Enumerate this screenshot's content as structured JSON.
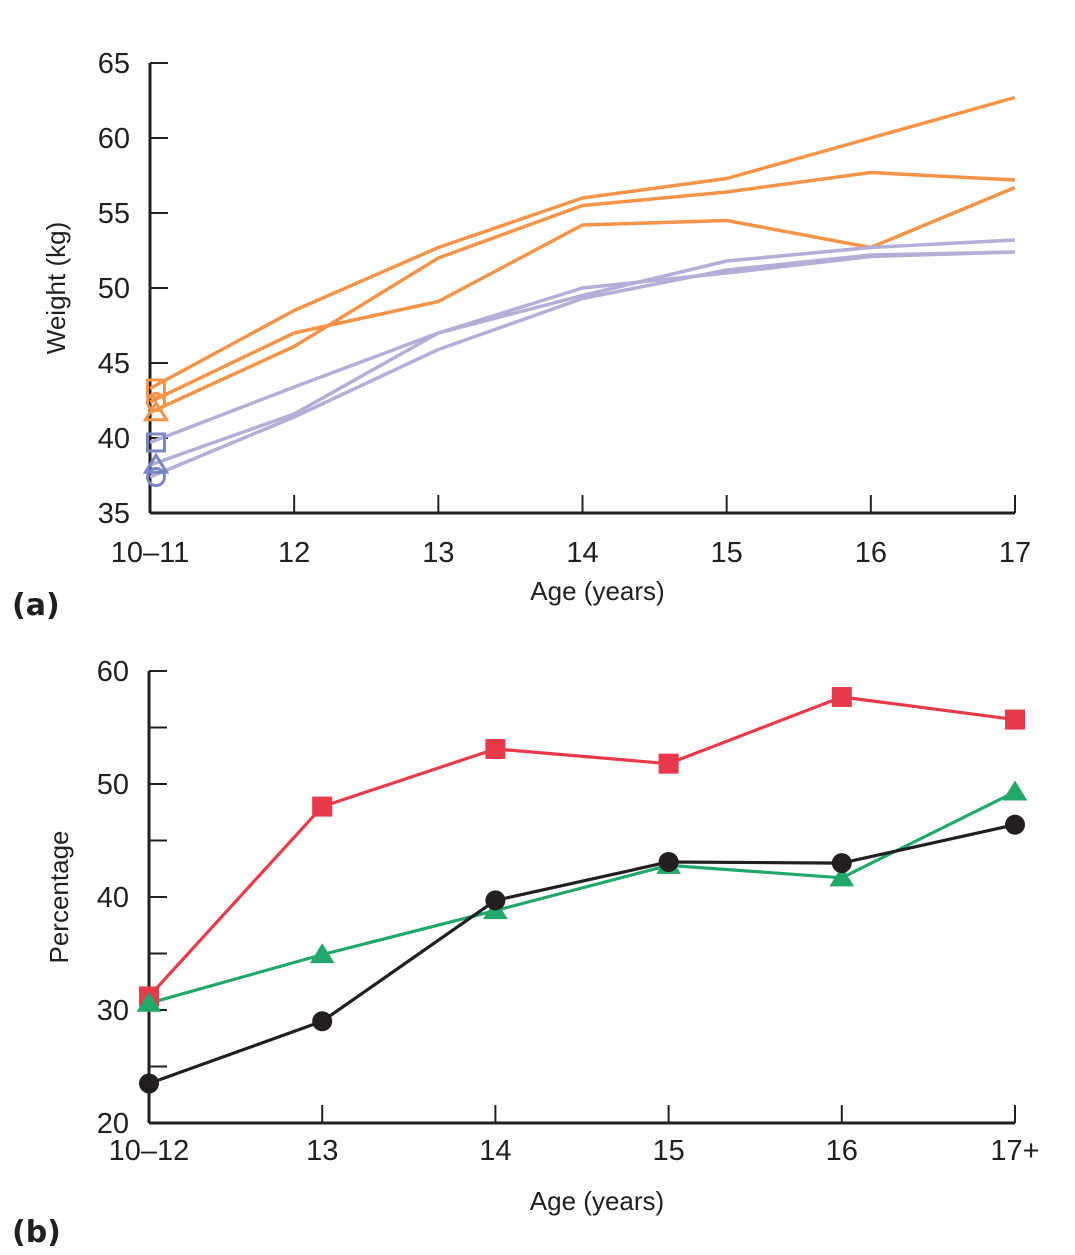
{
  "chart_data": [
    {
      "panel": "(a)",
      "type": "line",
      "title": "",
      "xlabel": "Age (years)",
      "ylabel": "Weight (kg)",
      "categories": [
        "10–11",
        "12",
        "13",
        "14",
        "15",
        "16",
        "17"
      ],
      "ylim": [
        35,
        65
      ],
      "yticks": [
        35,
        40,
        45,
        50,
        55,
        60,
        65
      ],
      "minor_y_ticks": false,
      "grid": false,
      "legend": "none",
      "series": [
        {
          "name": "orange-square",
          "color": "#f39449",
          "marker_color": "#f39449",
          "marker": "square-open",
          "values": [
            43.3,
            48.5,
            52.7,
            56.0,
            57.3,
            60.0,
            62.7
          ]
        },
        {
          "name": "orange-circle",
          "color": "#f39449",
          "marker_color": "#f39449",
          "marker": "circle-open",
          "values": [
            42.4,
            47.0,
            49.1,
            54.2,
            54.5,
            52.7,
            56.7
          ]
        },
        {
          "name": "orange-triangle",
          "color": "#f39449",
          "marker_color": "#f39449",
          "marker": "triangle-open",
          "values": [
            41.7,
            46.1,
            52.0,
            55.5,
            56.4,
            57.7,
            57.2
          ]
        },
        {
          "name": "purple-square",
          "color": "#b3afd6",
          "marker_color": "#7b86c6",
          "marker": "square-open",
          "values": [
            39.7,
            43.4,
            47.0,
            50.0,
            51.0,
            52.1,
            52.4
          ]
        },
        {
          "name": "purple-triangle",
          "color": "#b3afd6",
          "marker_color": "#7b86c6",
          "marker": "triangle-open",
          "values": [
            38.2,
            41.6,
            47.0,
            49.5,
            51.8,
            52.7,
            53.2
          ]
        },
        {
          "name": "purple-circle",
          "color": "#b3afd6",
          "marker_color": "#7b86c6",
          "marker": "circle-open",
          "values": [
            37.4,
            41.4,
            45.9,
            49.3,
            51.2,
            52.2,
            52.4
          ]
        }
      ]
    },
    {
      "panel": "(b)",
      "type": "line",
      "title": "",
      "xlabel": "Age (years)",
      "ylabel": "Percentage",
      "categories": [
        "10–12",
        "13",
        "14",
        "15",
        "16",
        "17+"
      ],
      "ylim": [
        20,
        60
      ],
      "yticks": [
        20,
        30,
        40,
        50,
        60
      ],
      "minor_y_ticks": true,
      "grid": false,
      "legend": "none",
      "series": [
        {
          "name": "red-square",
          "color": "#e83a4a",
          "marker_color": "#e83a4a",
          "marker": "square-filled",
          "values": [
            31.2,
            48.0,
            53.1,
            51.8,
            57.7,
            55.7
          ]
        },
        {
          "name": "green-triangle",
          "color": "#22a86a",
          "marker_color": "#22a86a",
          "marker": "triangle-filled",
          "values": [
            30.6,
            34.9,
            38.8,
            42.8,
            41.7,
            49.3
          ]
        },
        {
          "name": "black-circle",
          "color": "#231f20",
          "marker_color": "#231f20",
          "marker": "circle-filled",
          "values": [
            23.5,
            29.0,
            39.7,
            43.1,
            43.0,
            46.4
          ]
        }
      ]
    }
  ]
}
